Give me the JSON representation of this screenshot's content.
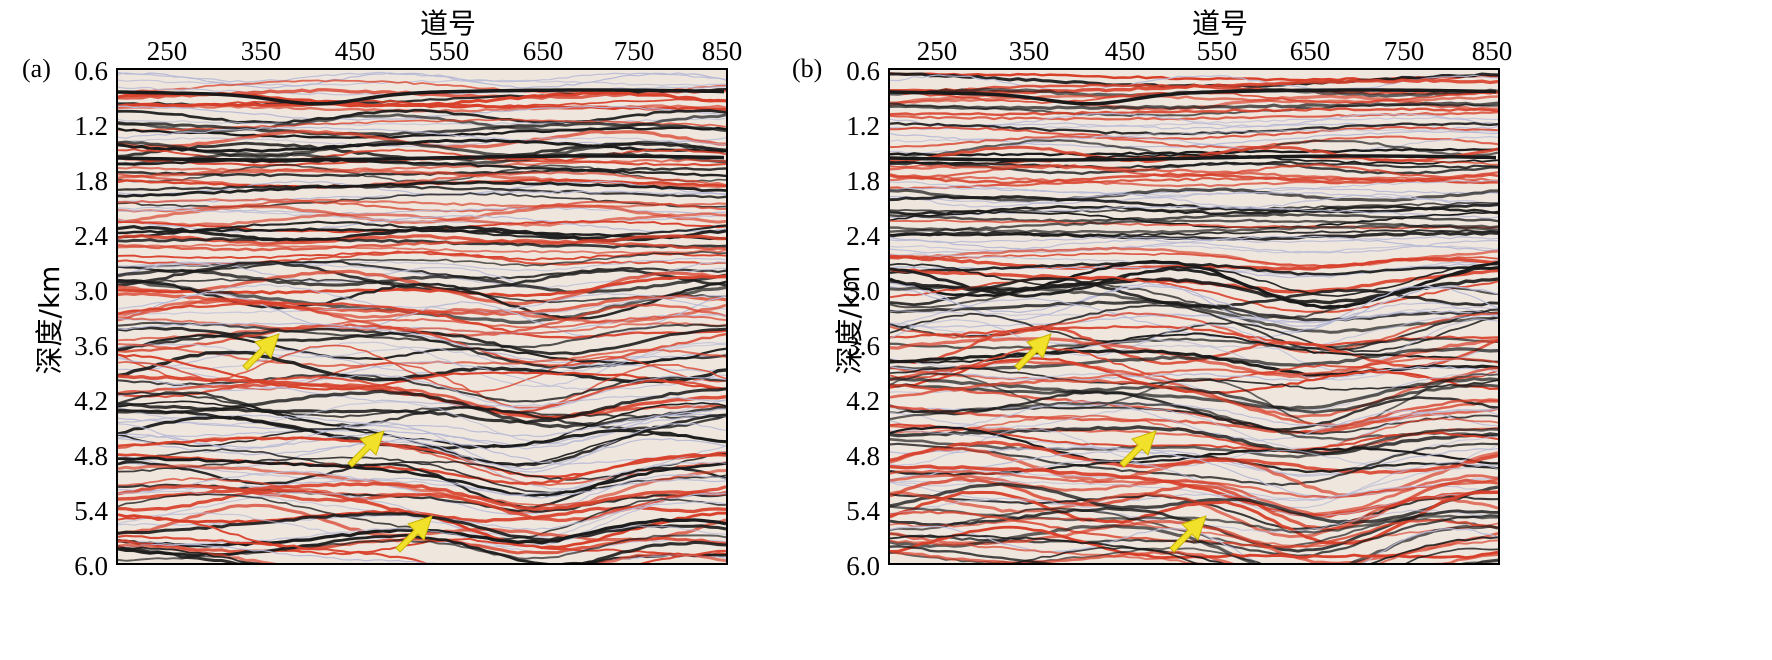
{
  "panels": [
    {
      "label": "(a)",
      "x_title": "道号",
      "y_title": "深度/km",
      "x_ticks": [
        "250",
        "350",
        "450",
        "550",
        "650",
        "750",
        "850"
      ],
      "y_ticks": [
        "0.6",
        "1.2",
        "1.8",
        "2.4",
        "3.0",
        "3.6",
        "4.2",
        "4.8",
        "5.4",
        "6.0"
      ],
      "arrow_count": 3
    },
    {
      "label": "(b)",
      "x_title": "道号",
      "y_title": "深度/km",
      "x_ticks": [
        "250",
        "350",
        "450",
        "550",
        "650",
        "750",
        "850"
      ],
      "y_ticks": [
        "0.6",
        "1.2",
        "1.8",
        "2.4",
        "3.0",
        "3.6",
        "4.2",
        "4.8",
        "5.4",
        "6.0"
      ],
      "arrow_count": 3
    }
  ],
  "colors": {
    "reflector_dark": "#1a1a1a",
    "reflector_red": "#d8402a",
    "background": "#efe7de",
    "arrow": "#f2e12a"
  }
}
